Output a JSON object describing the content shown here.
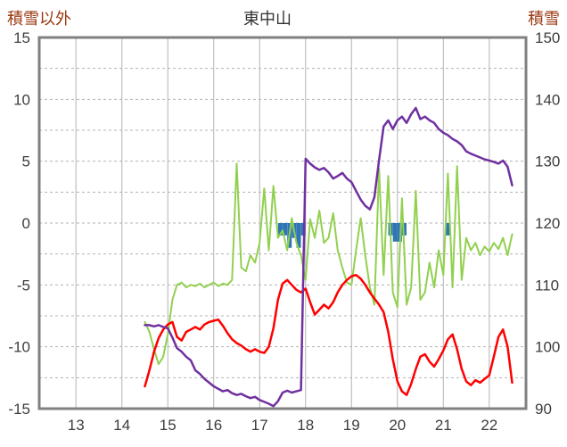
{
  "chart_data": {
    "type": "line",
    "title": "東中山",
    "left_axis": {
      "label": "積雪以外",
      "min": -15,
      "max": 15,
      "grid_step": 2.5,
      "ticks": [
        -15,
        -10,
        -5,
        0,
        5,
        10,
        15
      ]
    },
    "right_axis": {
      "label": "積雪",
      "min": 90,
      "max": 150,
      "ticks": [
        90,
        100,
        110,
        120,
        130,
        140,
        150
      ]
    },
    "x_axis": {
      "min": 12.2,
      "max": 22.8,
      "ticks": [
        13,
        14,
        15,
        16,
        17,
        18,
        19,
        20,
        21,
        22
      ]
    },
    "colors": {
      "grid": "#b3b3b3",
      "border": "#808080",
      "tick_text": "#3d3d3d",
      "header_text": "#9c3912",
      "title_text": "#333333"
    },
    "series": [
      {
        "name": "green-line",
        "axis": "left",
        "color": "#92d050",
        "width": 2,
        "x_start": 14.5,
        "x_step": 0.1,
        "values": [
          -8.0,
          -8.8,
          -10.2,
          -11.4,
          -10.8,
          -9.0,
          -6.2,
          -5.0,
          -4.8,
          -5.2,
          -5.0,
          -5.1,
          -4.9,
          -5.2,
          -5.0,
          -4.8,
          -5.1,
          -4.9,
          -5.0,
          -4.6,
          4.8,
          -3.6,
          -3.9,
          -2.6,
          -3.2,
          -1.6,
          2.8,
          -2.2,
          3.0,
          -1.2,
          -0.6,
          -2.2,
          0.4,
          -1.6,
          -2.6,
          -4.6,
          0.3,
          -1.2,
          1.0,
          -1.6,
          -1.2,
          0.8,
          -2.2,
          -3.6,
          -4.8,
          -5.0,
          -2.2,
          0.4,
          -2.6,
          -5.2,
          -6.6,
          4.4,
          -4.2,
          3.8,
          -5.6,
          -6.8,
          2.0,
          -6.6,
          -5.2,
          2.6,
          -6.2,
          -5.6,
          -3.2,
          -5.2,
          -2.2,
          -4.2,
          4.0,
          -5.2,
          4.6,
          -4.6,
          -1.2,
          -2.2,
          -1.6,
          -2.6,
          -1.9,
          -2.3,
          -1.6,
          -2.1,
          -1.2,
          -2.6,
          -0.9
        ]
      },
      {
        "name": "red-line",
        "axis": "left",
        "color": "#ff0000",
        "width": 2.5,
        "x_start": 14.5,
        "x_step": 0.1,
        "values": [
          -13.2,
          -11.9,
          -10.4,
          -9.3,
          -8.6,
          -8.2,
          -8.0,
          -9.2,
          -9.5,
          -8.8,
          -8.6,
          -8.4,
          -8.6,
          -8.2,
          -8.0,
          -7.9,
          -7.8,
          -8.3,
          -8.9,
          -9.4,
          -9.7,
          -9.9,
          -10.2,
          -10.4,
          -10.2,
          -10.4,
          -10.5,
          -10.0,
          -8.5,
          -6.2,
          -4.9,
          -4.6,
          -5.0,
          -5.4,
          -5.6,
          -5.3,
          -6.4,
          -7.4,
          -7.0,
          -6.6,
          -6.9,
          -6.4,
          -5.6,
          -5.0,
          -4.6,
          -4.3,
          -4.2,
          -4.5,
          -5.0,
          -5.6,
          -6.1,
          -6.6,
          -7.2,
          -8.8,
          -11.0,
          -12.8,
          -13.6,
          -13.9,
          -13.0,
          -11.8,
          -10.8,
          -10.6,
          -11.2,
          -11.6,
          -11.0,
          -10.3,
          -9.4,
          -9.0,
          -10.2,
          -11.8,
          -12.8,
          -13.1,
          -12.7,
          -12.9,
          -12.6,
          -12.3,
          -10.8,
          -9.2,
          -8.6,
          -10.0,
          -12.9
        ]
      },
      {
        "name": "purple-line",
        "axis": "right",
        "color": "#7030a0",
        "width": 2.5,
        "x_start": 14.5,
        "x_step": 0.1,
        "values": [
          103.5,
          103.5,
          103.3,
          103.5,
          103.2,
          103.0,
          101.5,
          99.8,
          99.2,
          98.4,
          97.8,
          96.2,
          95.6,
          94.8,
          94.2,
          93.6,
          93.2,
          92.8,
          93.0,
          92.5,
          92.2,
          92.4,
          92.0,
          91.7,
          91.9,
          91.4,
          91.1,
          90.8,
          90.4,
          91.2,
          92.6,
          92.9,
          92.6,
          92.8,
          93.0,
          130.4,
          129.6,
          129.0,
          128.6,
          128.9,
          128.2,
          127.2,
          127.6,
          128.1,
          127.2,
          126.6,
          125.2,
          123.8,
          122.8,
          122.2,
          124.2,
          130.2,
          135.6,
          136.6,
          135.2,
          136.6,
          137.2,
          136.2,
          137.6,
          138.6,
          136.8,
          137.2,
          136.6,
          136.2,
          135.2,
          134.6,
          134.2,
          133.6,
          133.2,
          132.6,
          131.6,
          131.2,
          130.9,
          130.6,
          130.3,
          130.1,
          129.9,
          129.6,
          130.1,
          129.1,
          126.1
        ]
      }
    ],
    "bars": {
      "name": "blue-bars",
      "axis": "left",
      "color": "#2e75b6",
      "baseline": 0,
      "points": [
        {
          "x": 17.45,
          "v": 1.0
        },
        {
          "x": 17.55,
          "v": 1.0
        },
        {
          "x": 17.65,
          "v": 2.0
        },
        {
          "x": 17.75,
          "v": 1.2
        },
        {
          "x": 17.85,
          "v": 2.0
        },
        {
          "x": 17.95,
          "v": 1.0
        },
        {
          "x": 19.85,
          "v": 1.0
        },
        {
          "x": 19.95,
          "v": 1.5
        },
        {
          "x": 20.05,
          "v": 1.5
        },
        {
          "x": 20.15,
          "v": 1.0
        },
        {
          "x": 21.1,
          "v": 1.0
        }
      ]
    }
  }
}
